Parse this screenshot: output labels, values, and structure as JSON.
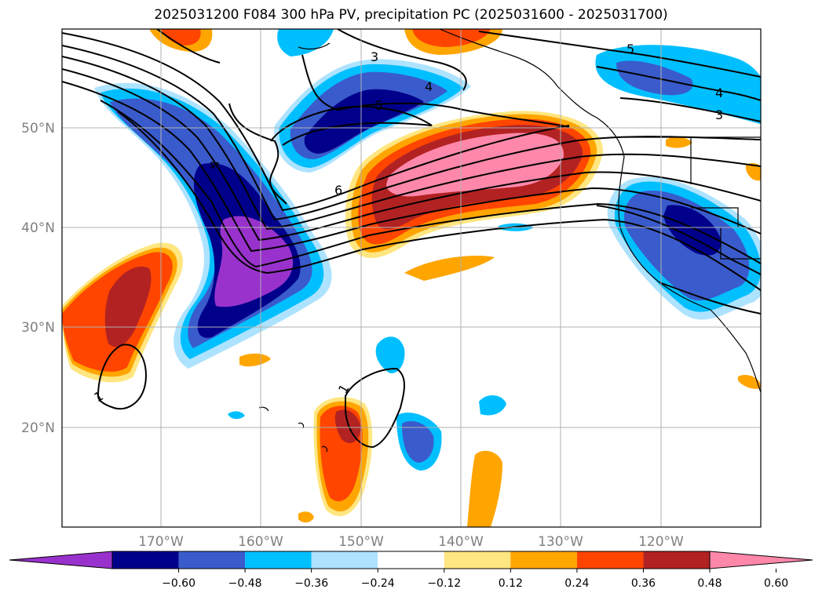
{
  "title": "2025031200 F084 300 hPa PV, precipitation PC (2025031600 - 2025031700)",
  "map": {
    "lat_labels": [
      "50°N",
      "40°N",
      "30°N",
      "20°N"
    ],
    "lon_labels": [
      "170°W",
      "160°W",
      "150°W",
      "140°W",
      "130°W",
      "120°W"
    ],
    "pv_contour_labels": [
      "5",
      "4",
      "3",
      "4",
      "5",
      "6",
      "5",
      "4",
      "3",
      "1",
      "1"
    ]
  },
  "colorbar": {
    "ticks": [
      "−0.60",
      "−0.48",
      "−0.36",
      "−0.24",
      "−0.12",
      "0.12",
      "0.24",
      "0.36",
      "0.48",
      "0.60"
    ],
    "colors": [
      "#9932CC",
      "#00008B",
      "#3A5BCB",
      "#00BFFF",
      "#ADE3FF",
      "#FFFFFF",
      "#FFE680",
      "#FFA500",
      "#FF4500",
      "#B22222",
      "#FF88AA"
    ]
  }
}
